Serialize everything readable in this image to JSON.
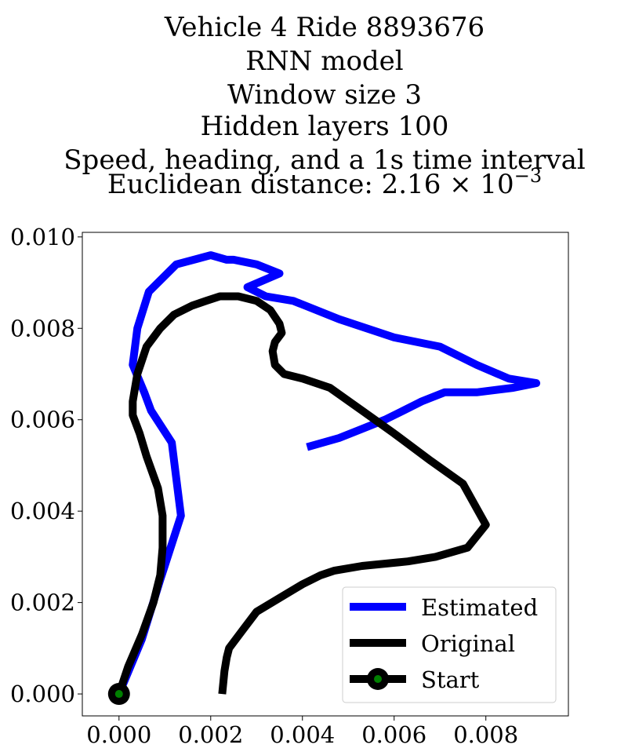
{
  "chart_data": {
    "type": "line",
    "title_lines": [
      "Vehicle 4 Ride 8893676",
      "RNN model",
      "Window size 3",
      "Hidden layers 100",
      "Speed, heading, and a 1s time interval"
    ],
    "title_last": {
      "prefix": "Euclidean distance: ",
      "mantissa": "2.16",
      "times": "×",
      "base": "10",
      "exponent": "−3"
    },
    "xlabel": "",
    "ylabel": "",
    "xlim": [
      -0.0008,
      0.0098
    ],
    "ylim": [
      -0.00048,
      0.0101
    ],
    "xticks": [
      0.0,
      0.002,
      0.004,
      0.006,
      0.008
    ],
    "xtick_labels": [
      "0.000",
      "0.002",
      "0.004",
      "0.006",
      "0.008"
    ],
    "yticks": [
      0.0,
      0.002,
      0.004,
      0.006,
      0.008,
      0.01
    ],
    "ytick_labels": [
      "0.000",
      "0.002",
      "0.004",
      "0.006",
      "0.008",
      "0.010"
    ],
    "grid": false,
    "legend_position": "lower-right",
    "series": [
      {
        "name": "Estimated",
        "color": "#0000ff",
        "x": [
          0.0,
          0.0005,
          0.0009,
          0.00135,
          0.00115,
          0.0007,
          0.00055,
          0.0003,
          0.0004,
          0.00065,
          0.00125,
          0.002,
          0.00235,
          0.0025,
          0.003,
          0.0035,
          0.0028,
          0.0032,
          0.0038,
          0.0048,
          0.006,
          0.007,
          0.0078,
          0.0085,
          0.0091,
          0.0086,
          0.0078,
          0.0071,
          0.0066,
          0.0062,
          0.0058,
          0.0053,
          0.0048,
          0.0041
        ],
        "y": [
          0.0,
          0.0012,
          0.0025,
          0.0039,
          0.0055,
          0.0062,
          0.0066,
          0.0072,
          0.008,
          0.0088,
          0.0094,
          0.0096,
          0.0095,
          0.0095,
          0.0094,
          0.0092,
          0.0089,
          0.0087,
          0.0086,
          0.0082,
          0.0078,
          0.0076,
          0.0072,
          0.0069,
          0.0068,
          0.0067,
          0.0066,
          0.0066,
          0.0064,
          0.0062,
          0.006,
          0.0058,
          0.0056,
          0.0054
        ]
      },
      {
        "name": "Original",
        "color": "#000000",
        "x": [
          0.0,
          0.0002,
          0.0005,
          0.00075,
          0.0009,
          0.00095,
          0.00095,
          0.00085,
          0.0006,
          0.00045,
          0.0003,
          0.0003,
          0.0004,
          0.0006,
          0.0009,
          0.0012,
          0.0016,
          0.0019,
          0.0022,
          0.0026,
          0.003,
          0.0033,
          0.0035,
          0.00355,
          0.0034,
          0.00335,
          0.0034,
          0.0036,
          0.004,
          0.0046,
          0.0053,
          0.006,
          0.0068,
          0.0075,
          0.008,
          0.0076,
          0.0069,
          0.0063,
          0.0053,
          0.0047,
          0.0044,
          0.004,
          0.0035,
          0.003,
          0.0027,
          0.0024,
          0.00235,
          0.0023,
          0.00225
        ],
        "y": [
          0.0,
          0.0006,
          0.0013,
          0.002,
          0.0026,
          0.0032,
          0.0039,
          0.0045,
          0.0052,
          0.0057,
          0.0061,
          0.0064,
          0.007,
          0.0076,
          0.008,
          0.0083,
          0.0085,
          0.0086,
          0.0087,
          0.0087,
          0.0086,
          0.0084,
          0.0081,
          0.0079,
          0.0077,
          0.0075,
          0.0072,
          0.007,
          0.0069,
          0.0067,
          0.0062,
          0.0057,
          0.0051,
          0.0046,
          0.0037,
          0.0032,
          0.003,
          0.0029,
          0.0028,
          0.0027,
          0.0026,
          0.0024,
          0.0021,
          0.0018,
          0.0014,
          0.001,
          0.0008,
          0.0005,
          0.0
        ]
      }
    ],
    "start_point": {
      "name": "Start",
      "x": 0.0,
      "y": 0.0,
      "outer_color": "#000000",
      "inner_color": "#008000"
    },
    "legend_entries": [
      "Estimated",
      "Original",
      "Start"
    ]
  }
}
